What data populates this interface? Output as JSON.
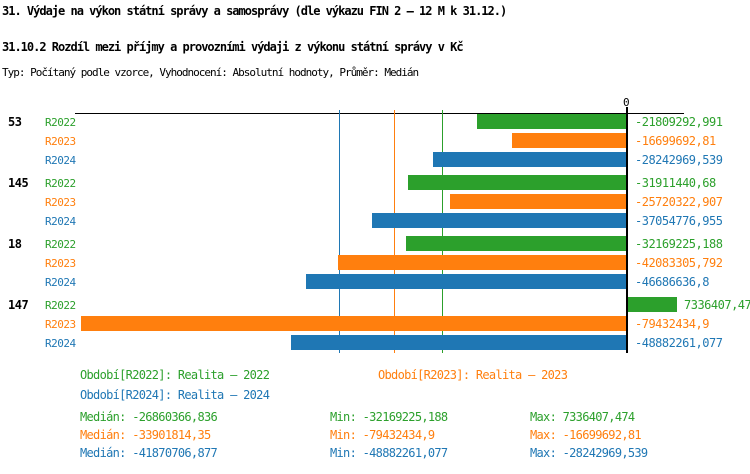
{
  "header": {
    "title": "31. Výdaje na výkon státní správy a samosprávy (dle výkazu FIN 2 – 12 M k 31.12.)",
    "subtitle": "31.10.2 Rozdíl mezi příjmy a provozními výdaji z výkonu státní správy v Kč",
    "meta": "Typ: Počítaný podle vzorce, Vyhodnocení: Absolutní hodnoty, Průměr: Medián"
  },
  "colors": {
    "r2022": "#2ca02c",
    "r2023": "#ff7f0e",
    "r2024": "#1f77b4",
    "axis": "#000000",
    "background": "#ffffff"
  },
  "chart_data": {
    "type": "bar",
    "orientation": "horizontal",
    "unit": "Kč",
    "zero_tick_label": "0",
    "xlim": [
      -80300000,
      8300000
    ],
    "grid": "median-lines-only",
    "legend_position": "bottom",
    "categories": [
      "53",
      "145",
      "18",
      "147"
    ],
    "series": [
      {
        "name": "R2022",
        "color": "#2ca02c",
        "values": [
          -21809292.991,
          -31911440.68,
          -32169225.188,
          7336407.474
        ],
        "value_labels": [
          "-21809292,991",
          "-31911440,68",
          "-32169225,188",
          "7336407,474"
        ]
      },
      {
        "name": "R2023",
        "color": "#ff7f0e",
        "values": [
          -16699692.81,
          -25720322.907,
          -42083305.792,
          -79432434.9
        ],
        "value_labels": [
          "-16699692,81",
          "-25720322,907",
          "-42083305,792",
          "-79432434,9"
        ]
      },
      {
        "name": "R2024",
        "color": "#1f77b4",
        "values": [
          -28242969.539,
          -37054776.955,
          -46686636.8,
          -48882261.077
        ],
        "value_labels": [
          "-28242969,539",
          "-37054776,955",
          "-46686636,8",
          "-48882261,077"
        ]
      }
    ],
    "median_lines": [
      {
        "series": "R2022",
        "value": -26860366.836,
        "color": "#2ca02c"
      },
      {
        "series": "R2023",
        "value": -33901814.35,
        "color": "#ff7f0e"
      },
      {
        "series": "R2024",
        "value": -41870706.877,
        "color": "#1f77b4"
      }
    ]
  },
  "legend": {
    "items": [
      {
        "label": "Období[R2022]: Realita – 2022",
        "color": "#2ca02c",
        "row": 0,
        "col": 0
      },
      {
        "label": "Období[R2023]: Realita – 2023",
        "color": "#ff7f0e",
        "row": 0,
        "col": 1
      },
      {
        "label": "Období[R2024]: Realita – 2024",
        "color": "#1f77b4",
        "row": 1,
        "col": 0
      }
    ]
  },
  "stats": {
    "rows": [
      {
        "series": "R2022",
        "color": "#2ca02c",
        "median_label": "Medián: -26860366,836",
        "min_label": "Min: -32169225,188",
        "max_label": "Max: 7336407,474"
      },
      {
        "series": "R2023",
        "color": "#ff7f0e",
        "median_label": "Medián: -33901814,35",
        "min_label": "Min: -79432434,9",
        "max_label": "Max: -16699692,81"
      },
      {
        "series": "R2024",
        "color": "#1f77b4",
        "median_label": "Medián: -41870706,877",
        "min_label": "Min: -48882261,077",
        "max_label": "Max: -28242969,539"
      }
    ]
  }
}
